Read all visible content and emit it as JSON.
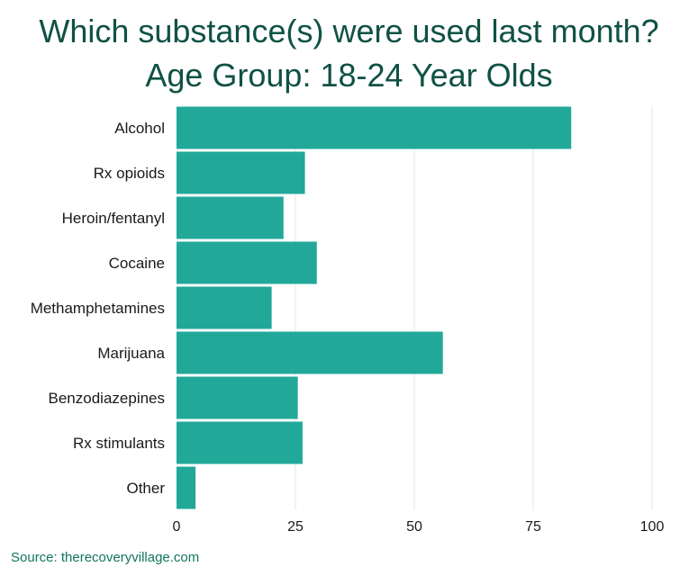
{
  "title_line1": "Which substance(s) were used last month?",
  "title_line2": "Age Group: 18-24 Year Olds",
  "source": "Source: therecoveryvillage.com",
  "colors": {
    "bar": "#21a899",
    "title": "#0f5145",
    "grid": "#e6e6e6",
    "source": "#12765f"
  },
  "chart_data": {
    "type": "bar",
    "orientation": "horizontal",
    "categories": [
      "Alcohol",
      "Rx opioids",
      "Heroin/fentanyl",
      "Cocaine",
      "Methamphetamines",
      "Marijuana",
      "Benzodiazepines",
      "Rx stimulants",
      "Other"
    ],
    "values": [
      83,
      27,
      22.5,
      29.5,
      20,
      56,
      25.5,
      26.5,
      4
    ],
    "xlim": [
      0,
      100
    ],
    "xticks": [
      0,
      25,
      50,
      75,
      100
    ],
    "grid": true
  }
}
